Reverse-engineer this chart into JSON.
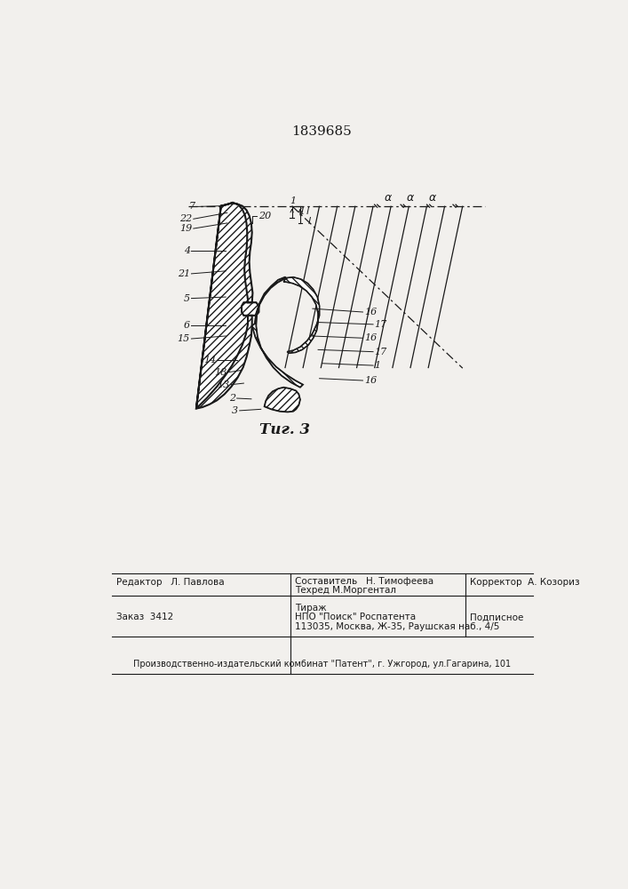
{
  "title": "1839685",
  "fig_label": "Τиг. 3",
  "bg_color": "#f2f0ed",
  "line_color": "#1a1a1a",
  "footer_text": [
    [
      60,
      295,
      "Редактор   Л. Павлова"
    ],
    [
      60,
      248,
      "Заказ  3412"
    ],
    [
      310,
      302,
      "Составитель   Н. Тимофеева"
    ],
    [
      310,
      288,
      "Техред М.Моргентал"
    ],
    [
      310,
      265,
      "Тираж"
    ],
    [
      310,
      250,
      "НПО \"Поиск\" Роспатента"
    ],
    [
      310,
      236,
      "113035, Москва, Ж-35, Раушская наб., 4/5"
    ],
    [
      565,
      295,
      "Корректор  А. Козориз"
    ],
    [
      565,
      248,
      "Подписное"
    ]
  ],
  "bottom_text": "Производственно-издательский комбинат \"Патент\", г. Ужгород, ул.Гагарина, 101"
}
